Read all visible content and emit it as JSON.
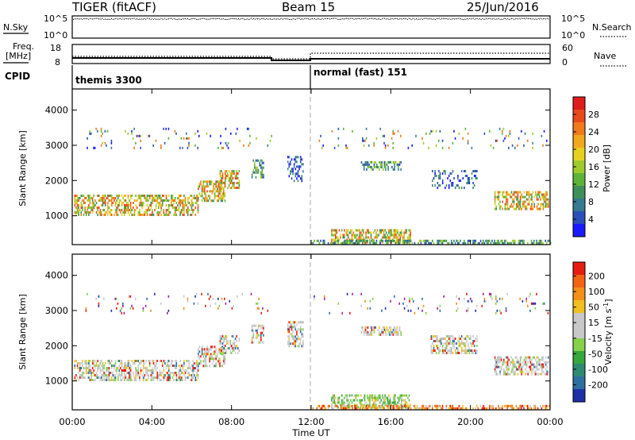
{
  "header": {
    "radar": "TIGER (fitACF)",
    "beam": "Beam 15",
    "date": "25/Jun/2016"
  },
  "noise_panel": {
    "left_label": "N.Sky",
    "right_label": "N.Search",
    "left_ticks": [
      "10^5",
      "10^0"
    ],
    "right_ticks": [
      "10^5",
      "10^0"
    ]
  },
  "freq_panel": {
    "left_label_1": "Freq.",
    "left_label_2": "[MHz]",
    "right_label": "Nave",
    "left_ticks": [
      "18",
      "8"
    ],
    "right_ticks": [
      "60",
      "0"
    ]
  },
  "cpid": {
    "label": "CPID",
    "segments": [
      {
        "name": "themis 3300",
        "start_hr": 0
      },
      {
        "name": "normal (fast) 151",
        "start_hr": 12
      }
    ]
  },
  "time_axis": {
    "label": "Time UT",
    "ticks": [
      "00:00",
      "04:00",
      "08:00",
      "12:00",
      "16:00",
      "20:00",
      "00:00"
    ],
    "range_hr": [
      0,
      24
    ],
    "marker_hr": 12
  },
  "chart_data": [
    {
      "type": "heatmap",
      "title": "Power",
      "ylabel": "Slant Range [km]",
      "xlabel": "",
      "ylim": [
        180,
        4600
      ],
      "yticks": [
        1000,
        2000,
        3000,
        4000
      ],
      "colorbar": {
        "label": "Power [dB]",
        "ticks": [
          "4",
          "8",
          "12",
          "16",
          "20",
          "24",
          "28"
        ],
        "colors": [
          "#1a1aff",
          "#2b4fb8",
          "#357a90",
          "#3e8f5a",
          "#5fb338",
          "#9ecb2a",
          "#e6d21e",
          "#f2a81c",
          "#f07a1c",
          "#e84a1c",
          "#e01c1c"
        ]
      },
      "echo_regions": [
        {
          "t": [
            0.1,
            6.3
          ],
          "r": [
            1050,
            1600
          ],
          "level": "high",
          "note": "dense band"
        },
        {
          "t": [
            6.3,
            7.7
          ],
          "r": [
            1400,
            2000
          ],
          "level": "high"
        },
        {
          "t": [
            7.4,
            8.4
          ],
          "r": [
            1800,
            2300
          ],
          "level": "high"
        },
        {
          "t": [
            9.0,
            9.6
          ],
          "r": [
            2100,
            2600
          ],
          "level": "mid"
        },
        {
          "t": [
            10.8,
            11.6
          ],
          "r": [
            2000,
            2700
          ],
          "level": "low"
        },
        {
          "t": [
            13.0,
            17.0
          ],
          "r": [
            280,
            620
          ],
          "level": "high"
        },
        {
          "t": [
            12.0,
            24.0
          ],
          "r": [
            190,
            320
          ],
          "level": "mid"
        },
        {
          "t": [
            14.5,
            16.5
          ],
          "r": [
            2300,
            2550
          ],
          "level": "mid"
        },
        {
          "t": [
            18.0,
            20.3
          ],
          "r": [
            1800,
            2300
          ],
          "level": "low"
        },
        {
          "t": [
            21.2,
            23.9
          ],
          "r": [
            1200,
            1700
          ],
          "level": "high"
        },
        {
          "t": [
            0.6,
            10.0
          ],
          "r": [
            2900,
            3500
          ],
          "level": "sparse"
        },
        {
          "t": [
            12.0,
            23.9
          ],
          "r": [
            2900,
            3500
          ],
          "level": "sparse"
        }
      ]
    },
    {
      "type": "heatmap",
      "title": "Velocity",
      "ylabel": "Slant Range [km]",
      "xlabel": "Time UT",
      "ylim": [
        180,
        4600
      ],
      "yticks": [
        1000,
        2000,
        3000,
        4000
      ],
      "colorbar": {
        "label": "Velocity [m s^-1]",
        "ticks": [
          "200",
          "100",
          "50",
          "15",
          "-15",
          "-50",
          "-100",
          "-200"
        ],
        "colors": [
          "#1f2fa8",
          "#2e6fa0",
          "#2f8a72",
          "#36a63e",
          "#86d04a",
          "#c8c8c8",
          "#c8c8c8",
          "#f0c020",
          "#f29018",
          "#f26414",
          "#e61c10"
        ]
      },
      "echo_regions": [
        {
          "t": [
            0.1,
            6.3
          ],
          "r": [
            1050,
            1600
          ],
          "level": "gray"
        },
        {
          "t": [
            6.3,
            7.7
          ],
          "r": [
            1400,
            2000
          ],
          "level": "gray"
        },
        {
          "t": [
            7.4,
            8.4
          ],
          "r": [
            1800,
            2300
          ],
          "level": "gray"
        },
        {
          "t": [
            9.0,
            9.6
          ],
          "r": [
            2100,
            2600
          ],
          "level": "gray"
        },
        {
          "t": [
            10.8,
            11.6
          ],
          "r": [
            2000,
            2700
          ],
          "level": "gray"
        },
        {
          "t": [
            13.0,
            17.0
          ],
          "r": [
            280,
            620
          ],
          "level": "green"
        },
        {
          "t": [
            12.0,
            24.0
          ],
          "r": [
            190,
            320
          ],
          "level": "orange"
        },
        {
          "t": [
            14.5,
            16.5
          ],
          "r": [
            2300,
            2550
          ],
          "level": "gray"
        },
        {
          "t": [
            18.0,
            20.3
          ],
          "r": [
            1800,
            2300
          ],
          "level": "gray"
        },
        {
          "t": [
            21.2,
            23.9
          ],
          "r": [
            1200,
            1700
          ],
          "level": "gray"
        },
        {
          "t": [
            0.6,
            10.0
          ],
          "r": [
            2900,
            3500
          ],
          "level": "sparse"
        },
        {
          "t": [
            12.0,
            23.9
          ],
          "r": [
            2900,
            3500
          ],
          "level": "sparse"
        }
      ]
    }
  ]
}
